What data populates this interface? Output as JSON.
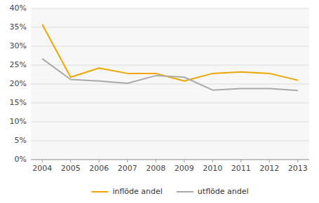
{
  "chart_data": {
    "type": "line",
    "x": [
      2004,
      2005,
      2006,
      2007,
      2008,
      2009,
      2010,
      2011,
      2012,
      2013
    ],
    "series": [
      {
        "name": "inflöde andel",
        "color": "#f0a500",
        "values": [
          0.358,
          0.218,
          0.242,
          0.228,
          0.228,
          0.208,
          0.228,
          0.232,
          0.228,
          0.21
        ]
      },
      {
        "name": "utflöde andel",
        "color": "#aaaaaa",
        "values": [
          0.267,
          0.212,
          0.208,
          0.202,
          0.222,
          0.218,
          0.184,
          0.188,
          0.188,
          0.183
        ]
      }
    ],
    "xlim": [
      2003.6,
      2013.4
    ],
    "xticks": [
      2004,
      2005,
      2006,
      2007,
      2008,
      2009,
      2010,
      2011,
      2012,
      2013
    ],
    "ylim": [
      0,
      0.4
    ],
    "yticks": [
      {
        "value": 0.0,
        "label": "0%"
      },
      {
        "value": 0.05,
        "label": "5%"
      },
      {
        "value": 0.1,
        "label": "10%"
      },
      {
        "value": 0.15,
        "label": "15%"
      },
      {
        "value": 0.2,
        "label": "20%"
      },
      {
        "value": 0.25,
        "label": "25%"
      },
      {
        "value": 0.3,
        "label": "30%"
      },
      {
        "value": 0.35,
        "label": "35%"
      },
      {
        "value": 0.4,
        "label": "40%"
      }
    ],
    "grid": true,
    "legend": "bottom"
  }
}
